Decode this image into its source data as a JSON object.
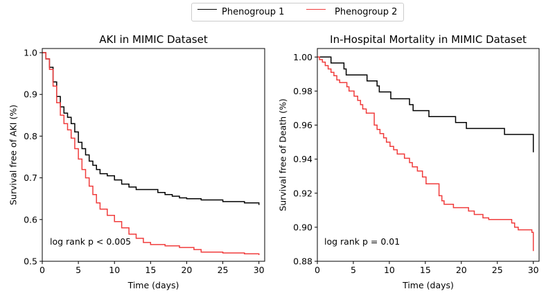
{
  "legend": {
    "series": [
      {
        "name": "Phenogroup 1",
        "color": "#000000"
      },
      {
        "name": "Phenogroup 2",
        "color": "#f03c3c"
      }
    ],
    "placement": "top-center"
  },
  "chart_data": [
    {
      "type": "line",
      "step": true,
      "title": "AKI in MIMIC Dataset",
      "xlabel": "Time (days)",
      "ylabel": "Survival free of AKI (%)",
      "xlim": [
        0,
        30.8
      ],
      "ylim": [
        0.5,
        1.01
      ],
      "xticks": [
        0,
        5,
        10,
        15,
        20,
        25,
        30
      ],
      "xtick_labels": [
        "0",
        "5",
        "10",
        "15",
        "20",
        "25",
        "30"
      ],
      "yticks": [
        0.5,
        0.6,
        0.7,
        0.8,
        0.9,
        1.0
      ],
      "ytick_labels": [
        "0.5",
        "0.6",
        "0.7",
        "0.8",
        "0.9",
        "1.0"
      ],
      "grid": false,
      "annotation": "log rank p < 0.005",
      "series": [
        {
          "name": "Phenogroup 1",
          "color": "#000000",
          "x": [
            0,
            0.5,
            1,
            1.5,
            2,
            2.5,
            3,
            3.5,
            4,
            4.5,
            5,
            5.5,
            6,
            6.5,
            7,
            7.5,
            8,
            9,
            10,
            11,
            12,
            13,
            15,
            16,
            17,
            18,
            19,
            20,
            22,
            25,
            28,
            30
          ],
          "y": [
            1.0,
            0.985,
            0.965,
            0.93,
            0.895,
            0.87,
            0.855,
            0.845,
            0.83,
            0.81,
            0.785,
            0.77,
            0.755,
            0.74,
            0.73,
            0.72,
            0.71,
            0.705,
            0.695,
            0.685,
            0.678,
            0.672,
            0.672,
            0.665,
            0.66,
            0.656,
            0.652,
            0.65,
            0.647,
            0.643,
            0.64,
            0.635
          ]
        },
        {
          "name": "Phenogroup 2",
          "color": "#f03c3c",
          "x": [
            0,
            0.5,
            1,
            1.5,
            2,
            2.5,
            3,
            3.5,
            4,
            4.5,
            5,
            5.5,
            6,
            6.5,
            7,
            7.5,
            8,
            9,
            10,
            11,
            12,
            13,
            14,
            15,
            17,
            19,
            21,
            22,
            25,
            28,
            30
          ],
          "y": [
            1.0,
            0.985,
            0.96,
            0.92,
            0.88,
            0.85,
            0.83,
            0.815,
            0.795,
            0.77,
            0.745,
            0.72,
            0.7,
            0.68,
            0.66,
            0.64,
            0.625,
            0.61,
            0.595,
            0.58,
            0.565,
            0.555,
            0.545,
            0.54,
            0.537,
            0.533,
            0.528,
            0.522,
            0.52,
            0.518,
            0.515
          ]
        }
      ]
    },
    {
      "type": "line",
      "step": true,
      "title": "In-Hospital Mortality in MIMIC Dataset",
      "xlabel": "Time (days)",
      "ylabel": "Survival free of Death (%)",
      "xlim": [
        0,
        30.8
      ],
      "ylim": [
        0.88,
        1.005
      ],
      "xticks": [
        0,
        5,
        10,
        15,
        20,
        25,
        30
      ],
      "xtick_labels": [
        "0",
        "5",
        "10",
        "15",
        "20",
        "25",
        "30"
      ],
      "yticks": [
        0.88,
        0.9,
        0.92,
        0.94,
        0.96,
        0.98,
        1.0
      ],
      "ytick_labels": [
        "0.88",
        "0.90",
        "0.92",
        "0.94",
        "0.96",
        "0.98",
        "1.00"
      ],
      "grid": false,
      "annotation": "log rank p = 0.01",
      "series": [
        {
          "name": "Phenogroup 1",
          "color": "#000000",
          "x": [
            0,
            1.9,
            3.7,
            4.0,
            6.9,
            8.3,
            8.6,
            10.2,
            12.8,
            13.3,
            15.5,
            19.2,
            20.7,
            26.0,
            30.0
          ],
          "y": [
            1.0,
            0.9965,
            0.993,
            0.9895,
            0.986,
            0.983,
            0.9795,
            0.9755,
            0.972,
            0.9685,
            0.965,
            0.9615,
            0.958,
            0.9545,
            0.944
          ]
        },
        {
          "name": "Phenogroup 2",
          "color": "#f03c3c",
          "x": [
            0,
            0.3,
            0.7,
            1.1,
            1.5,
            1.9,
            2.3,
            2.7,
            3.1,
            4.1,
            4.4,
            5.1,
            5.6,
            6.0,
            6.3,
            6.8,
            7.9,
            8.3,
            8.7,
            9.2,
            9.6,
            10.1,
            10.6,
            11.1,
            12.1,
            12.8,
            13.2,
            13.9,
            14.6,
            15.1,
            15.5,
            16.9,
            17.3,
            17.6,
            18.9,
            21.0,
            21.8,
            23.0,
            23.8,
            27.0,
            27.4,
            27.9,
            28.9,
            29.8,
            30.0
          ],
          "y": [
            1.0,
            0.9985,
            0.997,
            0.995,
            0.993,
            0.991,
            0.989,
            0.9865,
            0.985,
            0.9825,
            0.98,
            0.977,
            0.9745,
            0.972,
            0.9695,
            0.967,
            0.96,
            0.9575,
            0.955,
            0.9525,
            0.95,
            0.9475,
            0.9455,
            0.943,
            0.9405,
            0.938,
            0.9355,
            0.933,
            0.9295,
            0.9255,
            0.9255,
            0.9185,
            0.9155,
            0.9135,
            0.9115,
            0.9095,
            0.9075,
            0.9055,
            0.9045,
            0.9025,
            0.9,
            0.8985,
            0.8985,
            0.897,
            0.886
          ]
        }
      ]
    }
  ]
}
